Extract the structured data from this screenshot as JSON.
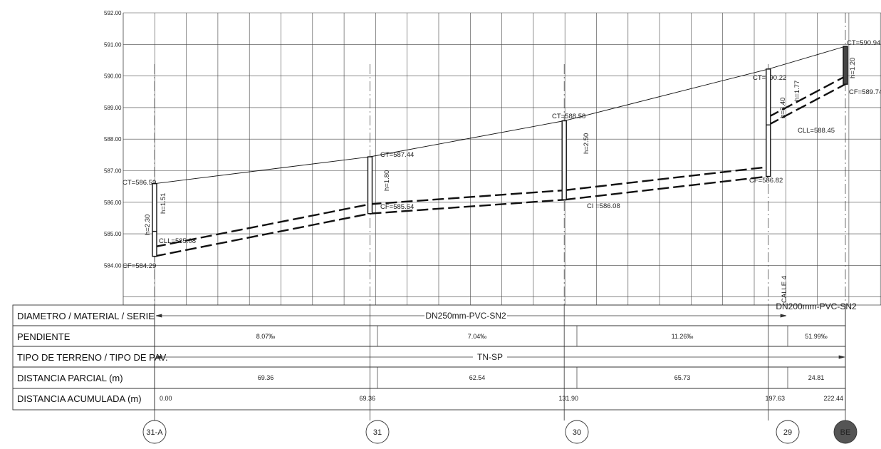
{
  "profile": {
    "elevation_labels": [
      "592.00",
      "591.00",
      "590.00",
      "589.00",
      "588.00",
      "587.00",
      "586.00",
      "585.00",
      "584.00"
    ],
    "elevation_range": [
      583.3,
      592
    ],
    "chainage_range": [
      0,
      222.44
    ],
    "terrain_line": [
      [
        0,
        586.59
      ],
      [
        69.36,
        587.44
      ],
      [
        131.9,
        588.58
      ],
      [
        197.63,
        590.22
      ],
      [
        222.44,
        590.94
      ]
    ],
    "pipe_invert": [
      [
        0,
        584.29
      ],
      [
        69.36,
        585.64
      ],
      [
        131.9,
        586.08
      ],
      [
        197.63,
        586.82
      ],
      [
        197.63,
        588.45
      ],
      [
        222.44,
        589.74
      ]
    ],
    "manholes": [
      {
        "id": "31-A",
        "chainage": 0,
        "ct": "CT=586.59",
        "cf": "CF=584.29",
        "cll": "CLL=585.08",
        "h": "h=2.30",
        "h2": "h=1.51",
        "terrain": 586.59,
        "bottom": 584.29,
        "cll_elev": 585.08
      },
      {
        "id": "31",
        "chainage": 69.36,
        "ct": "CT=587.44",
        "cf": "CF=585.64",
        "h": "h=1.80",
        "terrain": 587.44,
        "bottom": 585.64
      },
      {
        "id": "30",
        "chainage": 131.9,
        "ct": "CT=588.58",
        "ci": "CI =586.08",
        "h": "h=2.50",
        "terrain": 588.58,
        "bottom": 586.08
      },
      {
        "id": "29",
        "chainage": 197.63,
        "ct": "CT=590.22",
        "cf": "CF=586.82",
        "cll": "CLL=588.45",
        "h": "h=3.40",
        "h2": "h=1.77",
        "terrain": 590.22,
        "bottom": 586.82,
        "cll_elev": 588.45
      },
      {
        "id": "BE",
        "chainage": 222.44,
        "ct": "CT=590.94",
        "cf": "CF=589.74",
        "h": "h=1.20",
        "terrain": 590.94,
        "bottom": 589.74,
        "filled": true
      }
    ],
    "street_label": "CALLE 4"
  },
  "table": {
    "rows": [
      {
        "label": "DIAMETRO / MATERIAL / SERIE",
        "band": "DN250mm-PVC-SN2",
        "band2": "DN200mm-PVC-SN2"
      },
      {
        "label": "PENDIENTE",
        "values": [
          "8.07‰",
          "7.04‰",
          "11.26‰",
          "51.99‰"
        ]
      },
      {
        "label": "TIPO DE TERRENO / TIPO DE PAV.",
        "band": "TN-SP"
      },
      {
        "label": "DISTANCIA PARCIAL (m)",
        "values": [
          "69.36",
          "62.54",
          "65.73",
          "24.81"
        ]
      },
      {
        "label": "DISTANCIA ACUMULADA (m)",
        "values": [
          "0.00",
          "69.36",
          "131.90",
          "197.63",
          "222.44"
        ]
      }
    ]
  },
  "colors": {
    "line": "#111111",
    "grid": "#333333",
    "node_fill": "#555555"
  }
}
